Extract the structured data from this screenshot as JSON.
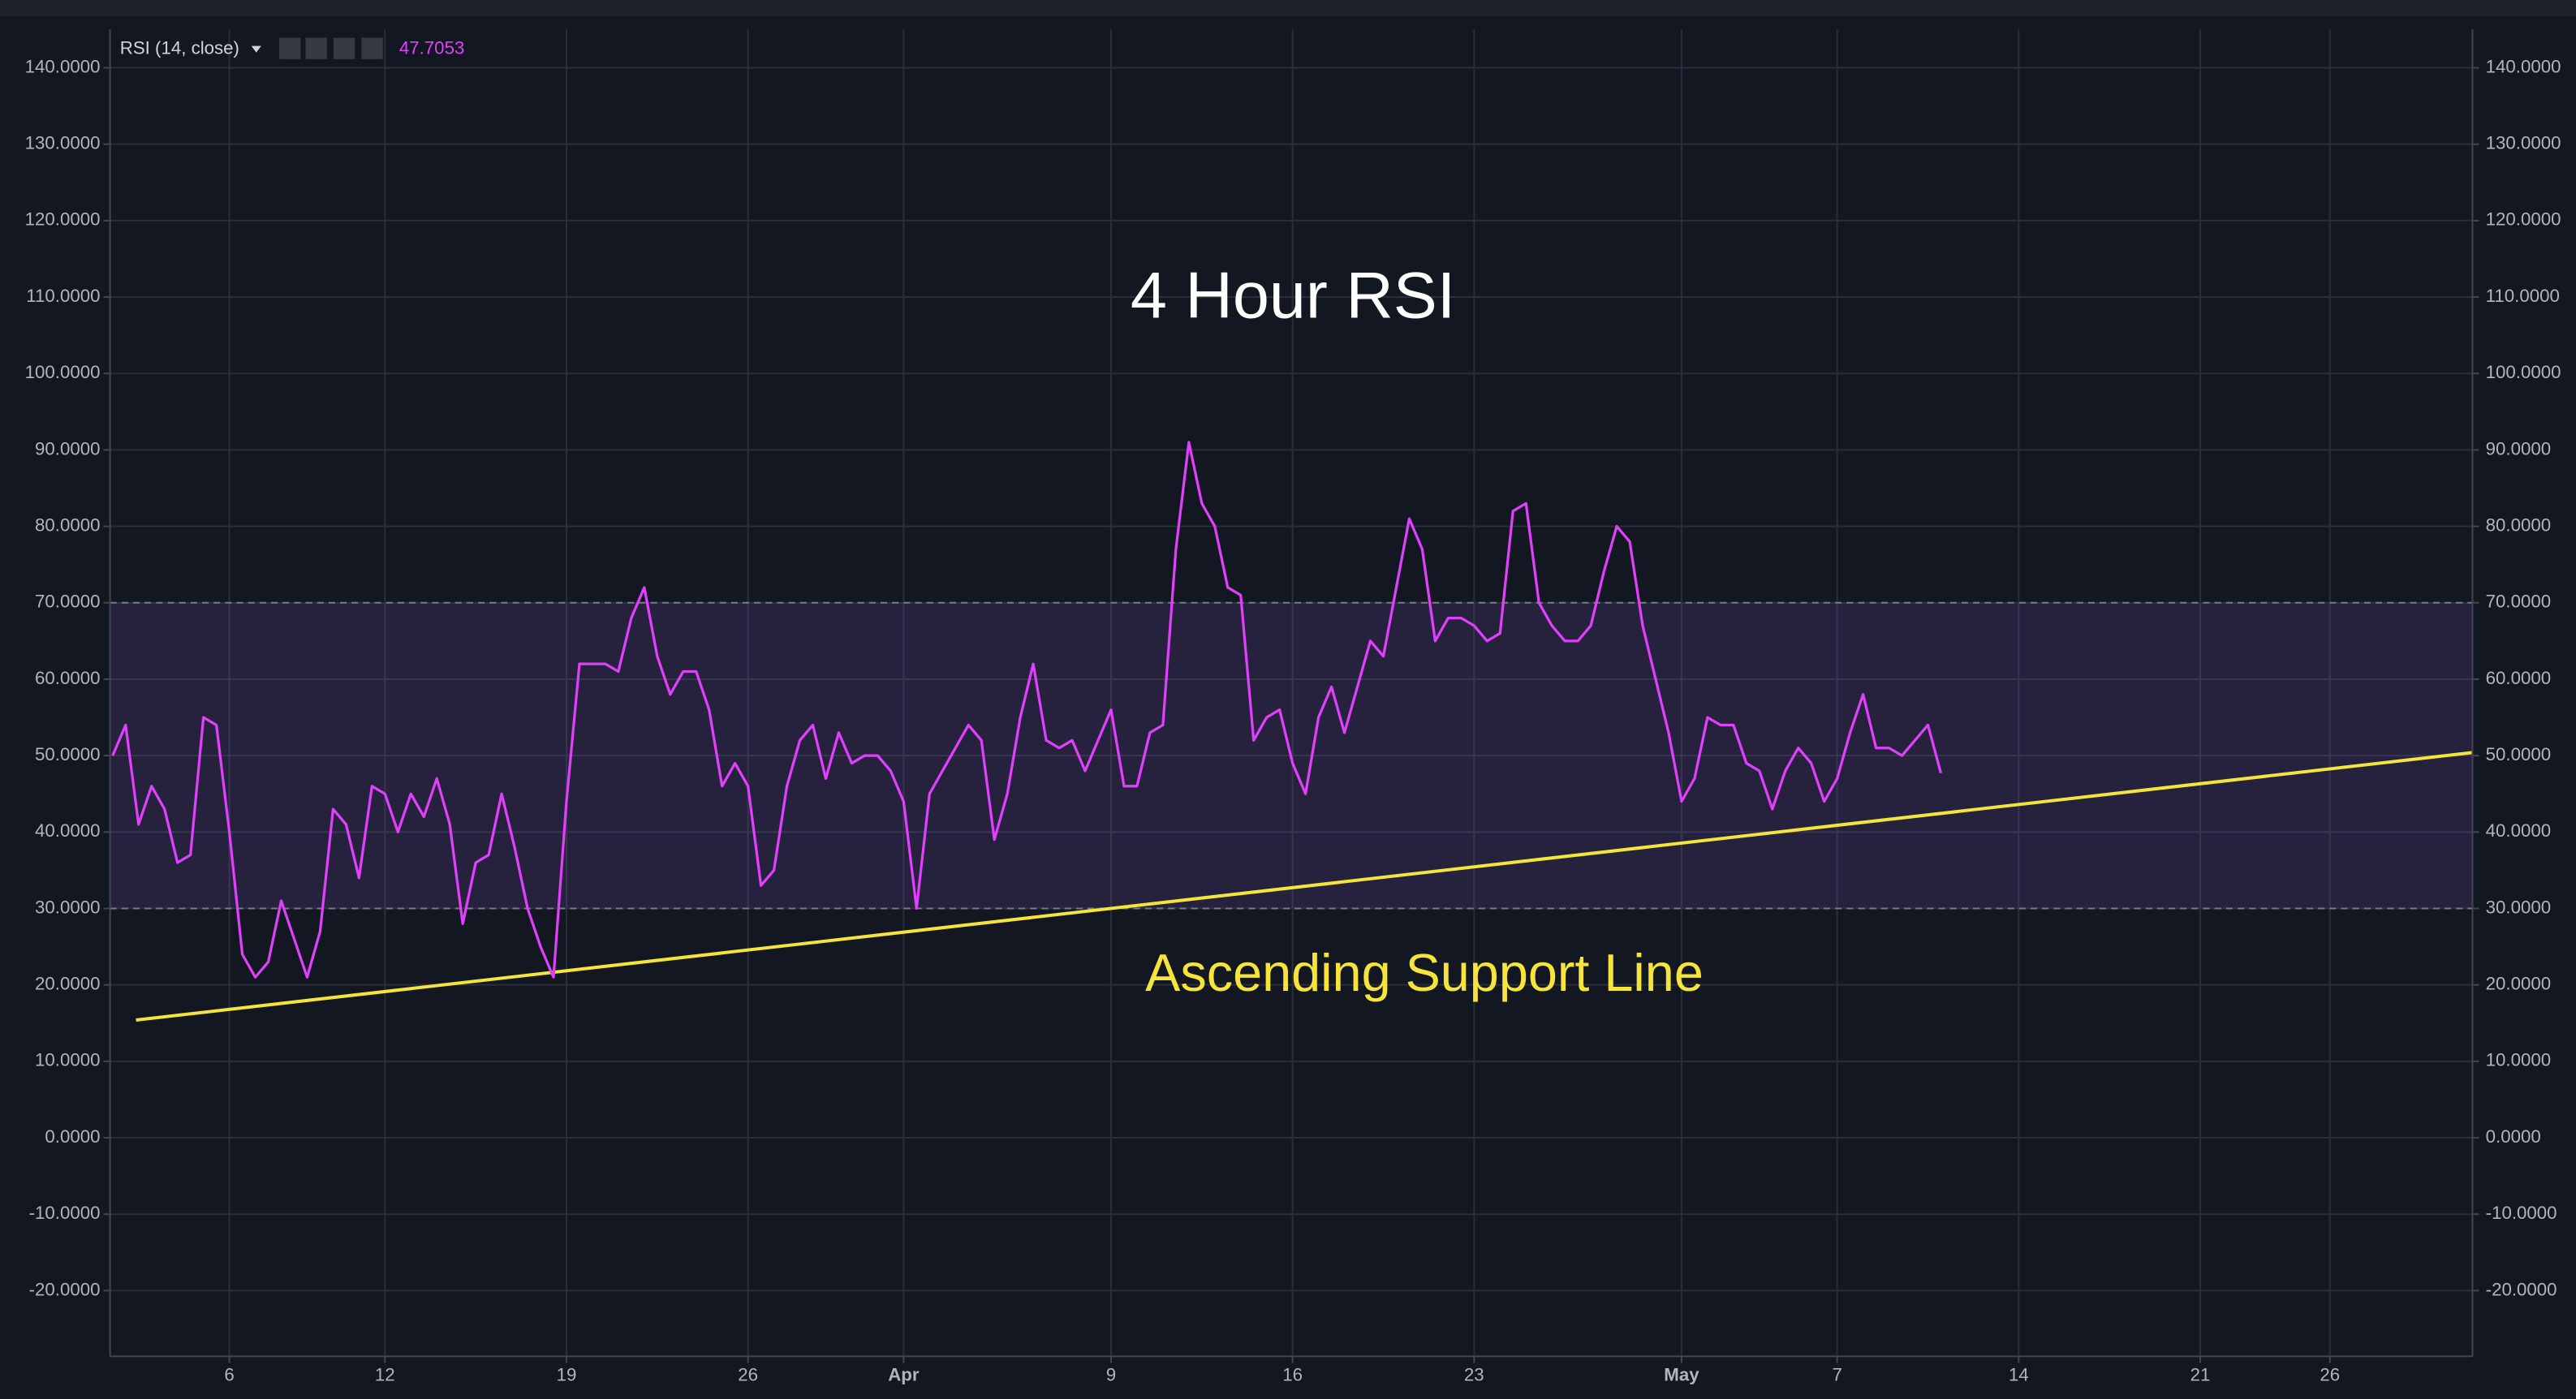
{
  "chart_data": {
    "type": "line",
    "indicator": "RSI (14, close)",
    "title": "4 Hour RSI",
    "annotation": "Ascending Support Line",
    "xlim": [
      1.4,
      92.5
    ],
    "ylim": [
      -28.6,
      145
    ],
    "xticks": [
      6,
      12,
      19,
      26,
      {
        "value": 32,
        "label": "Apr"
      },
      {
        "value": 40,
        "label": "9"
      },
      {
        "value": 47,
        "label": "16"
      },
      {
        "value": 54,
        "label": "23"
      },
      {
        "value": 62,
        "label": "May"
      },
      {
        "value": 68,
        "label": "7"
      },
      {
        "value": 75,
        "label": "14"
      },
      {
        "value": 82,
        "label": "21"
      },
      {
        "value": 87,
        "label": "26"
      }
    ],
    "yticks": [
      {
        "value": 140,
        "label": "140.0000"
      },
      {
        "value": 130,
        "label": "130.0000"
      },
      {
        "value": 120,
        "label": "120.0000"
      },
      {
        "value": 110,
        "label": "110.0000"
      },
      {
        "value": 100,
        "label": "100.0000"
      },
      {
        "value": 90,
        "label": "90.0000"
      },
      {
        "value": 80,
        "label": "80.0000"
      },
      {
        "value": 70,
        "label": "70.0000"
      },
      {
        "value": 60,
        "label": "60.0000"
      },
      {
        "value": 50,
        "label": "50.0000"
      },
      {
        "value": 40,
        "label": "40.0000"
      },
      {
        "value": 30,
        "label": "30.0000"
      },
      {
        "value": 20,
        "label": "20.0000"
      },
      {
        "value": 10,
        "label": "10.0000"
      },
      {
        "value": 0,
        "label": "0.0000"
      },
      {
        "value": -10,
        "label": "-10.0000"
      },
      {
        "value": -20,
        "label": "-20.0000"
      }
    ],
    "grid": true,
    "band": [
      30,
      70
    ],
    "color": "#e040fb",
    "x": [
      1.5,
      2,
      2.5,
      3,
      3.5,
      4,
      4.5,
      5,
      5.5,
      6,
      6.5,
      7,
      7.5,
      8,
      8.5,
      9,
      9.5,
      10,
      10.5,
      11,
      11.5,
      12,
      12.5,
      13,
      13.5,
      14,
      14.5,
      15,
      15.5,
      16,
      16.5,
      17,
      17.5,
      18,
      18.5,
      19,
      19.5,
      20,
      20.5,
      21,
      21.5,
      22,
      22.5,
      23,
      23.5,
      24,
      24.5,
      25,
      25.5,
      26,
      26.5,
      27,
      27.5,
      28,
      28.5,
      29,
      29.5,
      30,
      30.5,
      31,
      31.5,
      32,
      32.5,
      33,
      33.5,
      34,
      34.5,
      35,
      35.5,
      36,
      36.5,
      37,
      37.5,
      38,
      38.5,
      39,
      39.5,
      40,
      40.5,
      41,
      41.5,
      42,
      42.5,
      43,
      43.5,
      44,
      44.5,
      45,
      45.5,
      46,
      46.5,
      47,
      47.5,
      48,
      48.5,
      49,
      49.5,
      50,
      50.5,
      51,
      51.5,
      52,
      52.5,
      53,
      53.5,
      54,
      54.5,
      55,
      55.5,
      56,
      56.5,
      57,
      57.5,
      58,
      58.5,
      59,
      59.5,
      60,
      60.5,
      61,
      61.5,
      62,
      62.5,
      63,
      63.5,
      64,
      64.5,
      65,
      65.5,
      66,
      66.5,
      67,
      67.5,
      68,
      68.5,
      69,
      69.5,
      70,
      70.5,
      71,
      71.5,
      72
    ],
    "values": [
      50,
      54,
      41,
      46,
      43,
      36,
      37,
      55,
      54,
      40,
      24,
      21,
      23,
      31,
      26,
      21,
      27,
      43,
      41,
      34,
      46,
      45,
      40,
      45,
      42,
      47,
      41,
      28,
      36,
      37,
      45,
      38,
      30,
      25,
      21,
      44,
      62,
      62,
      62,
      61,
      68,
      72,
      63,
      58,
      61,
      61,
      56,
      46,
      49,
      46,
      33,
      35,
      46,
      52,
      54,
      47,
      53,
      49,
      50,
      50,
      48,
      44,
      30,
      45,
      48,
      51,
      54,
      52,
      39,
      45,
      55,
      62,
      52,
      51,
      52,
      48,
      52,
      56,
      46,
      46,
      53,
      54,
      77,
      91,
      83,
      80,
      72,
      71,
      52,
      55,
      56,
      49,
      45,
      55,
      59,
      53,
      59,
      65,
      63,
      72,
      81,
      77,
      65,
      68,
      68,
      67,
      65,
      66,
      82,
      83,
      70,
      67,
      65,
      65,
      67,
      74,
      80,
      78,
      67,
      60,
      53,
      44,
      47,
      55,
      54,
      54,
      49,
      48,
      43,
      48,
      51,
      49,
      44,
      47,
      53,
      58,
      51,
      51,
      50,
      52,
      54,
      47.7053
    ],
    "trendline": {
      "x": [
        2.4,
        92.5
      ],
      "values": [
        15.4,
        50.4
      ],
      "color": "#f5e43a"
    }
  }
}
